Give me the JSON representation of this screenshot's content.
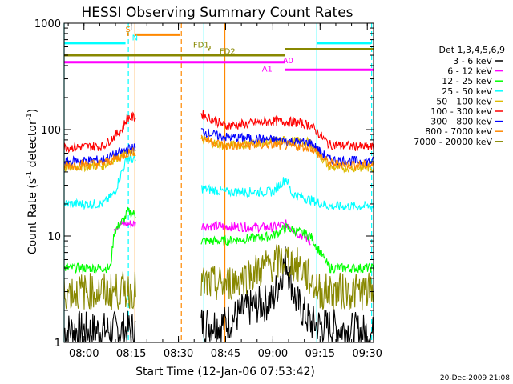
{
  "chart_data": {
    "type": "line",
    "title": "HESSI Observing Summary Count Rates",
    "xlabel": "Start Time (12-Jan-06 07:53:42)",
    "ylabel_main": "Count Rate (s",
    "ylabel_sup1": "-1",
    "ylabel_mid": " detector",
    "ylabel_sup2": "-1",
    "ylabel_end": ")",
    "y_scale": "log",
    "ylim": [
      1,
      1000
    ],
    "xlim": [
      7.895,
      9.533
    ],
    "x_unit": "hours UT",
    "xticks": [
      {
        "v": 8.0,
        "label": "08:00"
      },
      {
        "v": 8.25,
        "label": "08:15"
      },
      {
        "v": 8.5,
        "label": "08:30"
      },
      {
        "v": 8.75,
        "label": "08:45"
      },
      {
        "v": 9.0,
        "label": "09:00"
      },
      {
        "v": 9.25,
        "label": "09:15"
      },
      {
        "v": 9.5,
        "label": "09:30"
      }
    ],
    "yticks": [
      {
        "v": 1,
        "label": "1"
      },
      {
        "v": 10,
        "label": "10"
      },
      {
        "v": 100,
        "label": "100"
      },
      {
        "v": 1000,
        "label": "1000"
      }
    ],
    "legend_title": "Det 1,3,4,5,6,9",
    "legend_placement": "right",
    "series": [
      {
        "name": "3 - 6 keV",
        "color": "#000000",
        "points": [
          [
            7.895,
            1.3
          ],
          [
            8.2,
            1.3
          ],
          [
            8.62,
            1.5
          ],
          [
            8.75,
            1.5
          ],
          [
            8.85,
            2.0
          ],
          [
            9.0,
            2.5
          ],
          [
            9.07,
            6
          ],
          [
            9.12,
            2.5
          ],
          [
            9.2,
            1.5
          ],
          [
            9.533,
            1.2
          ]
        ]
      },
      {
        "name": "6 - 12 keV",
        "color": "#ff00ff",
        "points": [
          [
            8.16,
            12
          ],
          [
            8.19,
            13
          ],
          [
            8.22,
            13
          ],
          [
            8.99,
            12
          ],
          [
            9.08,
            13
          ],
          [
            9.12,
            11
          ],
          [
            9.2,
            9
          ]
        ]
      },
      {
        "name": "12 - 25 keV",
        "color": "#00ff00",
        "points": [
          [
            7.895,
            5
          ],
          [
            8.14,
            5
          ],
          [
            8.16,
            11
          ],
          [
            8.22,
            15
          ],
          [
            8.23,
            17
          ],
          [
            8.62,
            9
          ],
          [
            8.75,
            9
          ],
          [
            9.0,
            10
          ],
          [
            9.07,
            12
          ],
          [
            9.2,
            10
          ],
          [
            9.3,
            5
          ],
          [
            9.533,
            5
          ]
        ]
      },
      {
        "name": "25 - 50 keV",
        "color": "#00ffff",
        "points": [
          [
            7.895,
            20
          ],
          [
            8.1,
            20
          ],
          [
            8.16,
            25
          ],
          [
            8.2,
            40
          ],
          [
            8.23,
            55
          ],
          [
            8.62,
            28
          ],
          [
            8.75,
            26
          ],
          [
            9.0,
            26
          ],
          [
            9.07,
            35
          ],
          [
            9.1,
            25
          ],
          [
            9.3,
            19
          ],
          [
            9.533,
            19
          ]
        ]
      },
      {
        "name": "50 - 100 keV",
        "color": "#ddbb00",
        "points": [
          [
            7.895,
            44
          ],
          [
            8.1,
            46
          ],
          [
            8.2,
            58
          ],
          [
            8.23,
            60
          ],
          [
            8.62,
            80
          ],
          [
            8.75,
            70
          ],
          [
            9.0,
            78
          ],
          [
            9.08,
            79
          ],
          [
            9.2,
            75
          ],
          [
            9.3,
            44
          ],
          [
            9.533,
            44
          ]
        ]
      },
      {
        "name": "100 - 300 keV",
        "color": "#ff0000",
        "points": [
          [
            7.895,
            68
          ],
          [
            8.1,
            70
          ],
          [
            8.2,
            100
          ],
          [
            8.23,
            130
          ],
          [
            8.62,
            140
          ],
          [
            8.7,
            120
          ],
          [
            8.75,
            108
          ],
          [
            8.9,
            115
          ],
          [
            9.0,
            120
          ],
          [
            9.1,
            118
          ],
          [
            9.2,
            110
          ],
          [
            9.3,
            72
          ],
          [
            9.533,
            68
          ]
        ]
      },
      {
        "name": "300 - 800 keV",
        "color": "#0000ff",
        "points": [
          [
            7.895,
            50
          ],
          [
            8.1,
            52
          ],
          [
            8.2,
            62
          ],
          [
            8.23,
            65
          ],
          [
            8.62,
            98
          ],
          [
            8.7,
            88
          ],
          [
            8.75,
            85
          ],
          [
            9.0,
            80
          ],
          [
            9.2,
            75
          ],
          [
            9.3,
            52
          ],
          [
            9.533,
            50
          ]
        ]
      },
      {
        "name": "800 - 7000 keV",
        "color": "#ff8800",
        "points": [
          [
            7.895,
            46
          ],
          [
            8.1,
            48
          ],
          [
            8.2,
            56
          ],
          [
            8.23,
            60
          ],
          [
            8.62,
            85
          ],
          [
            8.7,
            75
          ],
          [
            8.75,
            70
          ],
          [
            9.0,
            72
          ],
          [
            9.2,
            68
          ],
          [
            9.3,
            48
          ],
          [
            9.533,
            46
          ]
        ]
      },
      {
        "name": "7000 - 20000 keV",
        "color": "#888800",
        "points": [
          [
            7.895,
            3
          ],
          [
            8.15,
            3
          ],
          [
            8.62,
            3.5
          ],
          [
            8.75,
            3.5
          ],
          [
            8.9,
            4.5
          ],
          [
            9.0,
            5.5
          ],
          [
            9.07,
            6
          ],
          [
            9.15,
            5
          ],
          [
            9.25,
            3
          ],
          [
            9.533,
            3
          ]
        ]
      }
    ],
    "annotations": [
      {
        "label": "S",
        "x": 8.233,
        "color": "#ff8800"
      },
      {
        "label": "N",
        "x": 8.27,
        "color": "#00ffff"
      },
      {
        "label": "FD1",
        "x": 8.62,
        "color": "#888800"
      },
      {
        "label": "FD2",
        "x": 8.76,
        "color": "#888800"
      },
      {
        "label": "A0",
        "x": 9.08,
        "color": "#ff00ff"
      },
      {
        "label": "A1",
        "x": 8.97,
        "color": "#ff00ff"
      }
    ],
    "vertical_markers": [
      {
        "x": 7.895,
        "color": "#00ffff",
        "style": "solid"
      },
      {
        "x": 8.235,
        "color": "#00ffff",
        "style": "dashed"
      },
      {
        "x": 8.27,
        "color": "#ff8800",
        "style": "solid"
      },
      {
        "x": 8.5155,
        "color": "#ff8800",
        "style": "dashed"
      },
      {
        "x": 8.635,
        "color": "#00ffff",
        "style": "solid"
      },
      {
        "x": 8.746,
        "color": "#ff8800",
        "style": "solid"
      },
      {
        "x": 9.233,
        "color": "#00ffff",
        "style": "solid"
      },
      {
        "x": 9.523,
        "color": "#00ffff",
        "style": "dashed"
      }
    ]
  },
  "footer": {
    "date_stamp": "20-Dec-2009 21:08"
  }
}
